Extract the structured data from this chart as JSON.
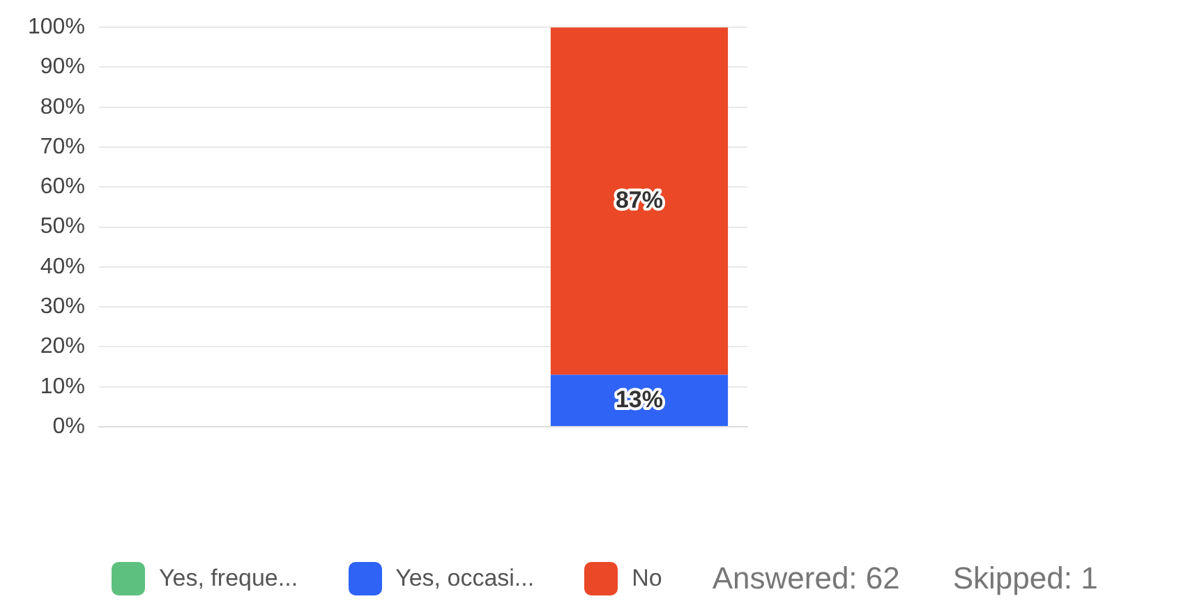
{
  "chart_data": {
    "type": "bar",
    "stacked": true,
    "categories": [
      null,
      null,
      null
    ],
    "series": [
      {
        "name": "Yes, freque...",
        "color": "#5ec07e",
        "values": [
          null,
          null,
          0
        ],
        "value_labels": [
          null,
          null,
          null
        ]
      },
      {
        "name": "Yes, occasi...",
        "color": "#2f63f5",
        "values": [
          null,
          null,
          13
        ],
        "value_labels": [
          null,
          null,
          "13%"
        ]
      },
      {
        "name": "No",
        "color": "#ea4826",
        "values": [
          null,
          null,
          87
        ],
        "value_labels": [
          null,
          null,
          "87%"
        ]
      }
    ],
    "ylim": [
      0,
      100
    ],
    "yticks": [
      {
        "value": 0,
        "label": "0%"
      },
      {
        "value": 10,
        "label": "10%"
      },
      {
        "value": 20,
        "label": "20%"
      },
      {
        "value": 30,
        "label": "30%"
      },
      {
        "value": 40,
        "label": "40%"
      },
      {
        "value": 50,
        "label": "50%"
      },
      {
        "value": 60,
        "label": "60%"
      },
      {
        "value": 70,
        "label": "70%"
      },
      {
        "value": 80,
        "label": "80%"
      },
      {
        "value": 90,
        "label": "90%"
      },
      {
        "value": 100,
        "label": "100%"
      }
    ],
    "grid": "y",
    "legend": "bottom",
    "annotations": [
      "Answered: 62",
      "Skipped: 1"
    ]
  }
}
